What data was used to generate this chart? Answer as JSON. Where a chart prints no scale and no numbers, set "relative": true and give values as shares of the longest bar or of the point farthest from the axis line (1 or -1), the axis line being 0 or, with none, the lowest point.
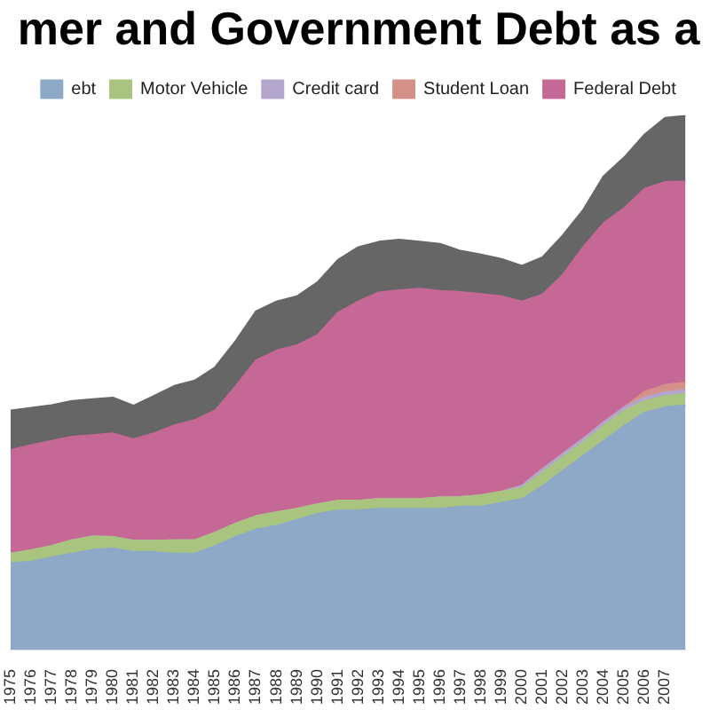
{
  "chart_data": {
    "type": "area",
    "title": "mer and Government Debt as a",
    "relative": true,
    "stacked": true,
    "legend": "top",
    "categories": [
      "1975",
      "1976",
      "1977",
      "1978",
      "1979",
      "1980",
      "1981",
      "1982",
      "1983",
      "1984",
      "1985",
      "1986",
      "1987",
      "1988",
      "1989",
      "1990",
      "1991",
      "1992",
      "1993",
      "1994",
      "1995",
      "1996",
      "1997",
      "1998",
      "1999",
      "2000",
      "2001",
      "2002",
      "2003",
      "2004",
      "2005",
      "2006",
      "2007",
      null
    ],
    "series": [
      {
        "name": "ebt",
        "color": "#8ea8c8",
        "values": [
          0.162,
          0.165,
          0.173,
          0.18,
          0.187,
          0.19,
          0.183,
          0.183,
          0.18,
          0.18,
          0.194,
          0.211,
          0.225,
          0.232,
          0.243,
          0.254,
          0.261,
          0.261,
          0.264,
          0.264,
          0.264,
          0.264,
          0.268,
          0.268,
          0.275,
          0.282,
          0.306,
          0.335,
          0.363,
          0.391,
          0.419,
          0.444,
          0.454,
          0.458
        ]
      },
      {
        "name": "Motor Vehicle",
        "color": "#a9c47f",
        "values": [
          0.018,
          0.021,
          0.021,
          0.025,
          0.025,
          0.021,
          0.021,
          0.021,
          0.025,
          0.025,
          0.025,
          0.025,
          0.025,
          0.025,
          0.021,
          0.018,
          0.018,
          0.018,
          0.018,
          0.018,
          0.018,
          0.021,
          0.018,
          0.021,
          0.021,
          0.021,
          0.025,
          0.025,
          0.025,
          0.028,
          0.028,
          0.021,
          0.021,
          0.021
        ]
      },
      {
        "name": "Credit card",
        "color": "#b3a6cc",
        "values": [
          0,
          0,
          0,
          0,
          0,
          0,
          0,
          0,
          0,
          0,
          0,
          0,
          0,
          0,
          0,
          0,
          0,
          0,
          0,
          0,
          0,
          0,
          0,
          0,
          0,
          0.004,
          0.007,
          0.007,
          0.007,
          0.007,
          0.007,
          0.007,
          0.007,
          0.007
        ]
      },
      {
        "name": "Student Loan",
        "color": "#d4918a",
        "values": [
          0,
          0,
          0,
          0,
          0,
          0,
          0,
          0,
          0,
          0,
          0,
          0,
          0,
          0,
          0,
          0,
          0,
          0,
          0,
          0,
          0,
          0,
          0,
          0,
          0,
          0,
          0,
          0,
          0,
          0,
          0,
          0.011,
          0.014,
          0.014
        ]
      },
      {
        "name": "Federal Debt",
        "color": "#c66896",
        "values": [
          0.194,
          0.197,
          0.197,
          0.194,
          0.19,
          0.194,
          0.19,
          0.201,
          0.215,
          0.225,
          0.229,
          0.257,
          0.292,
          0.303,
          0.306,
          0.317,
          0.352,
          0.373,
          0.387,
          0.391,
          0.394,
          0.387,
          0.384,
          0.377,
          0.366,
          0.345,
          0.327,
          0.335,
          0.359,
          0.373,
          0.373,
          0.38,
          0.38,
          0.377
        ]
      },
      {
        "color": "#666666",
        "values": [
          0.074,
          0.07,
          0.067,
          0.067,
          0.067,
          0.067,
          0.063,
          0.07,
          0.074,
          0.074,
          0.081,
          0.085,
          0.092,
          0.092,
          0.092,
          0.099,
          0.099,
          0.102,
          0.095,
          0.095,
          0.088,
          0.088,
          0.077,
          0.074,
          0.07,
          0.067,
          0.07,
          0.074,
          0.07,
          0.088,
          0.095,
          0.102,
          0.12,
          0.123
        ]
      }
    ]
  }
}
